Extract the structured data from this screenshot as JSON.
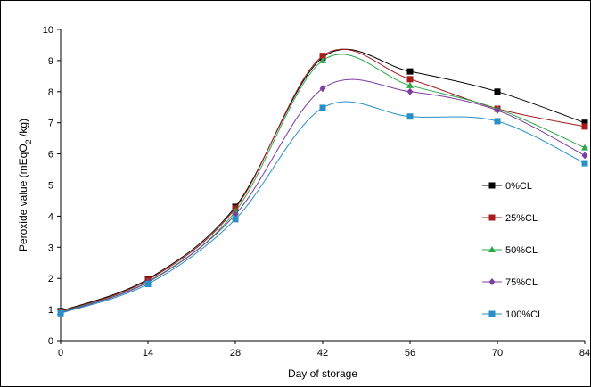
{
  "chart_data": {
    "type": "line",
    "title": "",
    "xlabel": "Day of storage",
    "ylabel_main": "Peroxide value (mEqO",
    "ylabel_sub": "2",
    "ylabel_tail": " /kg)",
    "x": [
      0,
      14,
      28,
      42,
      56,
      70,
      84
    ],
    "x_tick_labels": [
      "0",
      "14",
      "28",
      "42",
      "56",
      "70",
      "84"
    ],
    "y_tick_labels": [
      "0",
      "1",
      "2",
      "3",
      "4",
      "5",
      "6",
      "7",
      "8",
      "9",
      "10"
    ],
    "xlim": [
      0,
      84
    ],
    "ylim": [
      0,
      10
    ],
    "grid": false,
    "legend_position": "right",
    "smooth": true,
    "series": [
      {
        "name": "0%CL",
        "color": "#000000",
        "marker": "square",
        "values": [
          0.95,
          1.98,
          4.3,
          9.1,
          8.65,
          8.0,
          7.0
        ]
      },
      {
        "name": "25%CL",
        "color": "#a51c1c",
        "marker": "square",
        "values": [
          0.93,
          1.95,
          4.25,
          9.15,
          8.4,
          7.45,
          6.88
        ]
      },
      {
        "name": "50%CL",
        "color": "#2aa84a",
        "marker": "triangle",
        "values": [
          0.92,
          1.9,
          4.15,
          9.0,
          8.2,
          7.45,
          6.2
        ]
      },
      {
        "name": "75%CL",
        "color": "#7b3fa0",
        "marker": "diamond",
        "values": [
          0.9,
          1.88,
          4.05,
          8.1,
          8.0,
          7.4,
          5.95
        ]
      },
      {
        "name": "100%CL",
        "color": "#2a8fc4",
        "marker": "square",
        "values": [
          0.88,
          1.82,
          3.9,
          7.48,
          7.2,
          7.05,
          5.7
        ]
      }
    ]
  }
}
